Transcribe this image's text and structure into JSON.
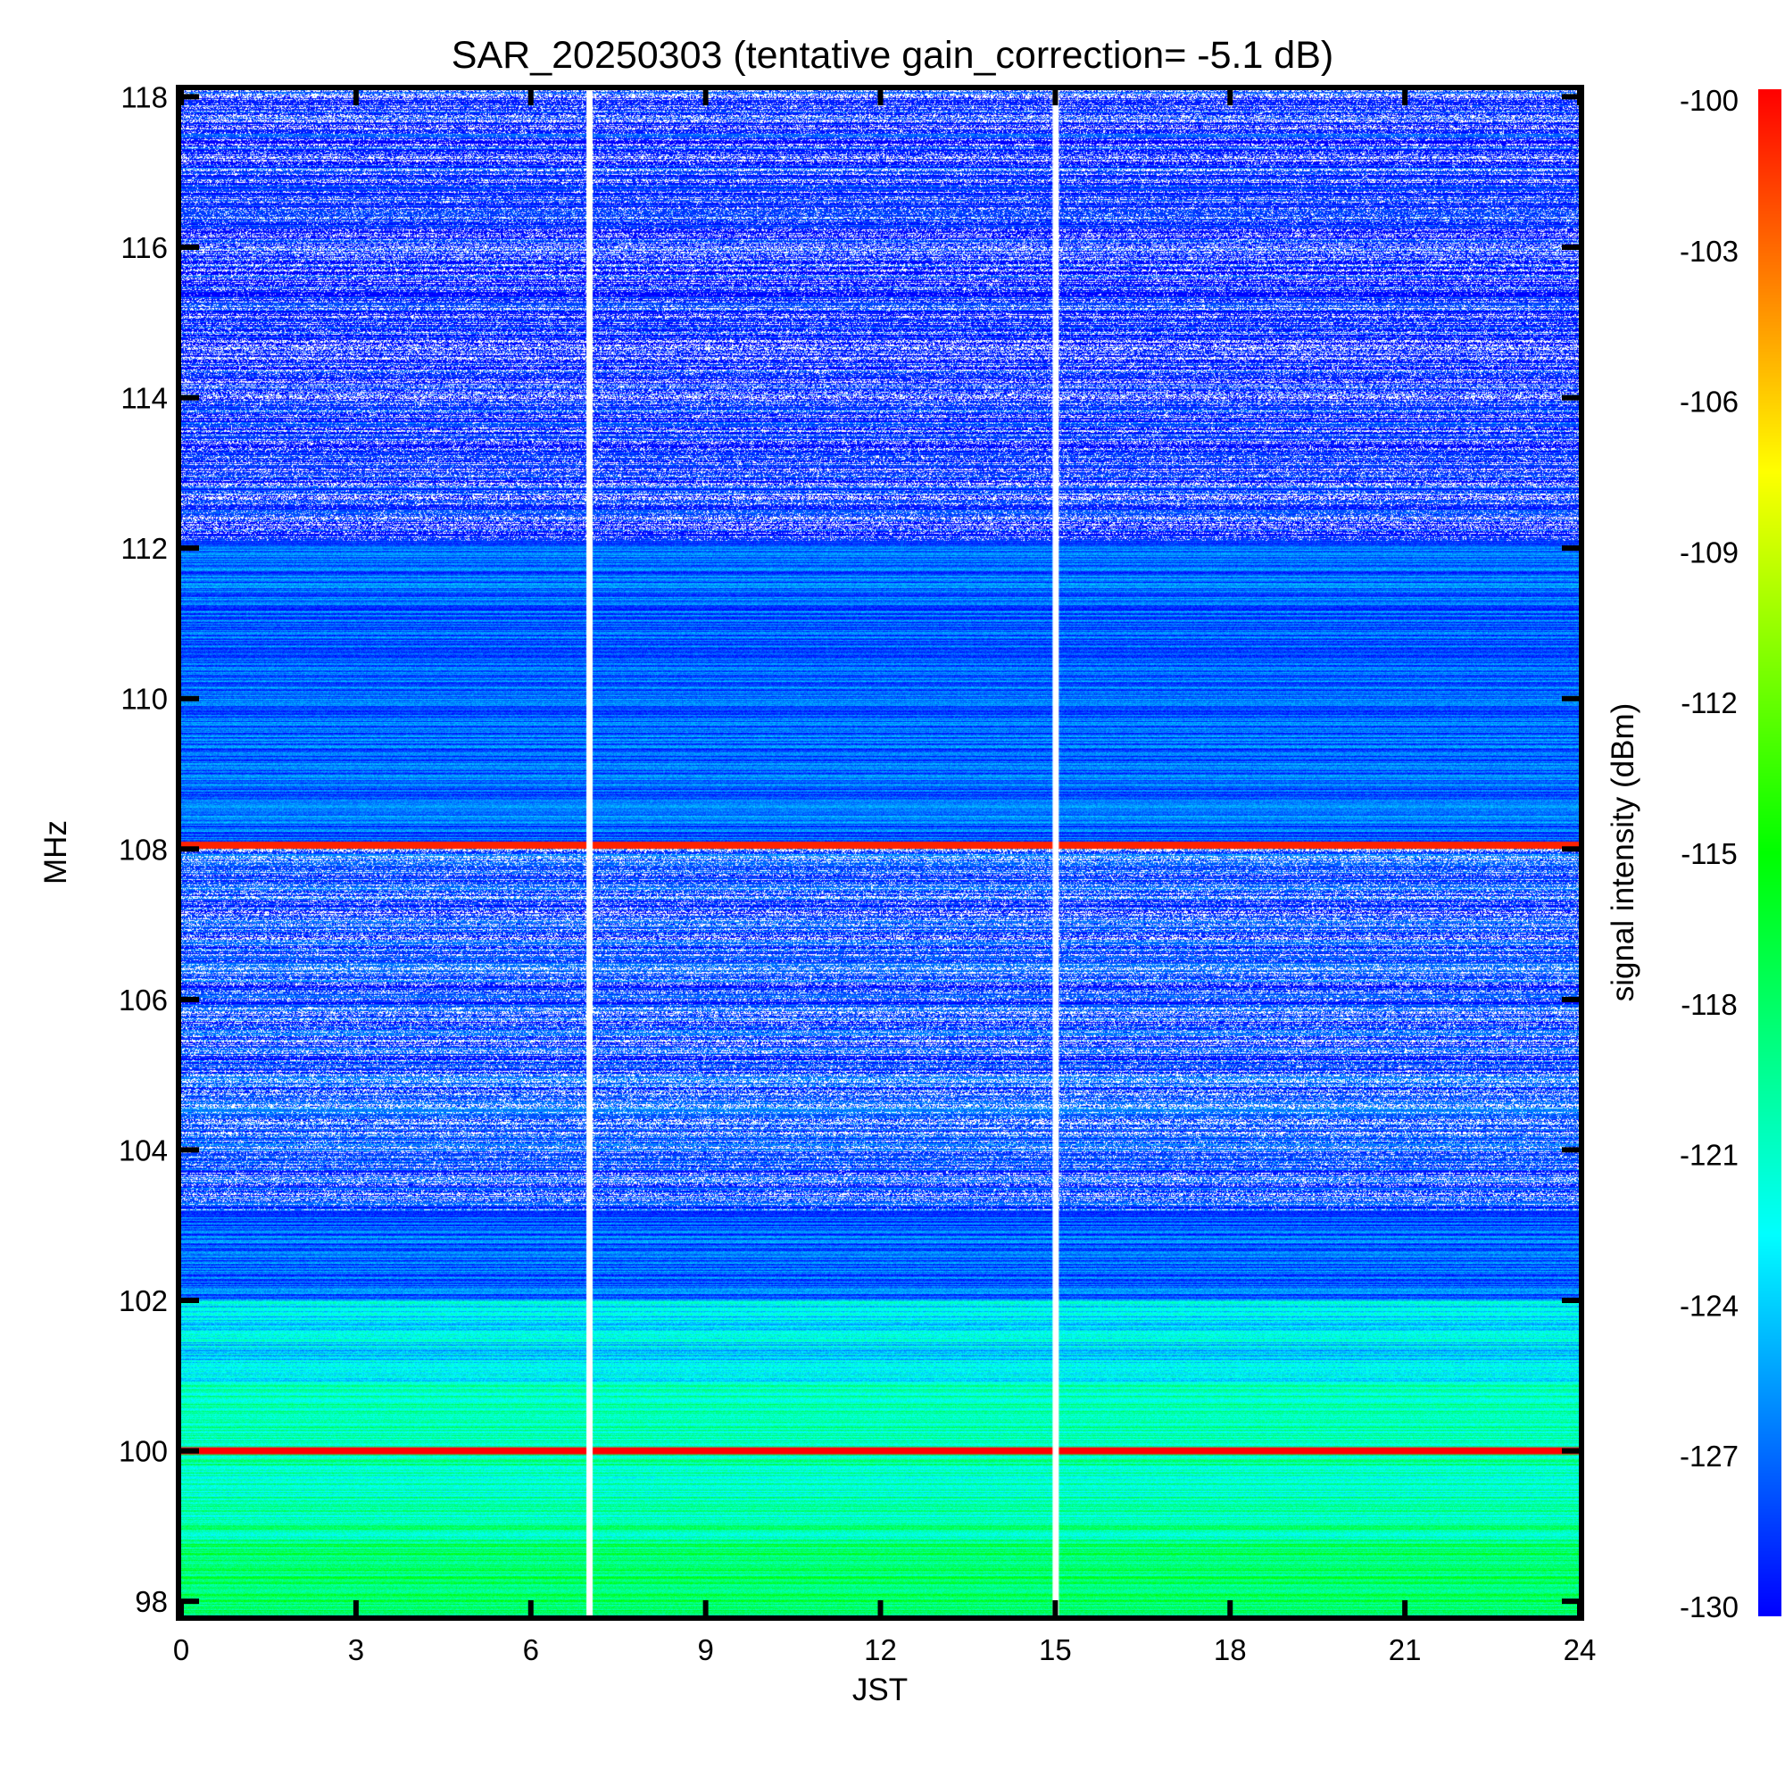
{
  "chart_data": {
    "type": "heatmap",
    "title": "SAR_20250303 (tentative gain_correction= -5.1 dB)",
    "xlabel": "JST",
    "ylabel": "MHz",
    "colorbar_label": "signal intensity (dBm)",
    "xlim": [
      0,
      24
    ],
    "ylim": [
      97.8,
      118.1
    ],
    "x_ticks": [
      0,
      3,
      6,
      9,
      12,
      15,
      18,
      21,
      24
    ],
    "y_ticks": [
      98,
      100,
      102,
      104,
      106,
      108,
      110,
      112,
      114,
      116,
      118
    ],
    "color_range": [
      -130,
      -100
    ],
    "colorbar_ticks": [
      -100,
      -103,
      -106,
      -109,
      -112,
      -115,
      -118,
      -121,
      -124,
      -127,
      -130
    ],
    "colormap": [
      "#0000ff",
      "#00ffff",
      "#00ff00",
      "#ffff00",
      "#ff0000"
    ],
    "gaps_x": [
      7,
      15
    ],
    "strong_carriers": [
      {
        "freq": 100.0,
        "level": -100
      },
      {
        "freq": 108.05,
        "level": -101
      }
    ],
    "bands": [
      {
        "from": 97.8,
        "to": 98.8,
        "level": -118
      },
      {
        "from": 98.8,
        "to": 100.9,
        "level": -120
      },
      {
        "from": 100.9,
        "to": 102.0,
        "level": -123
      },
      {
        "from": 102.0,
        "to": 103.2,
        "level": -127
      },
      {
        "from": 103.2,
        "to": 108.0,
        "level": -128
      },
      {
        "from": 108.0,
        "to": 112.1,
        "level": -127
      },
      {
        "from": 112.1,
        "to": 118.1,
        "level": -129
      }
    ]
  }
}
